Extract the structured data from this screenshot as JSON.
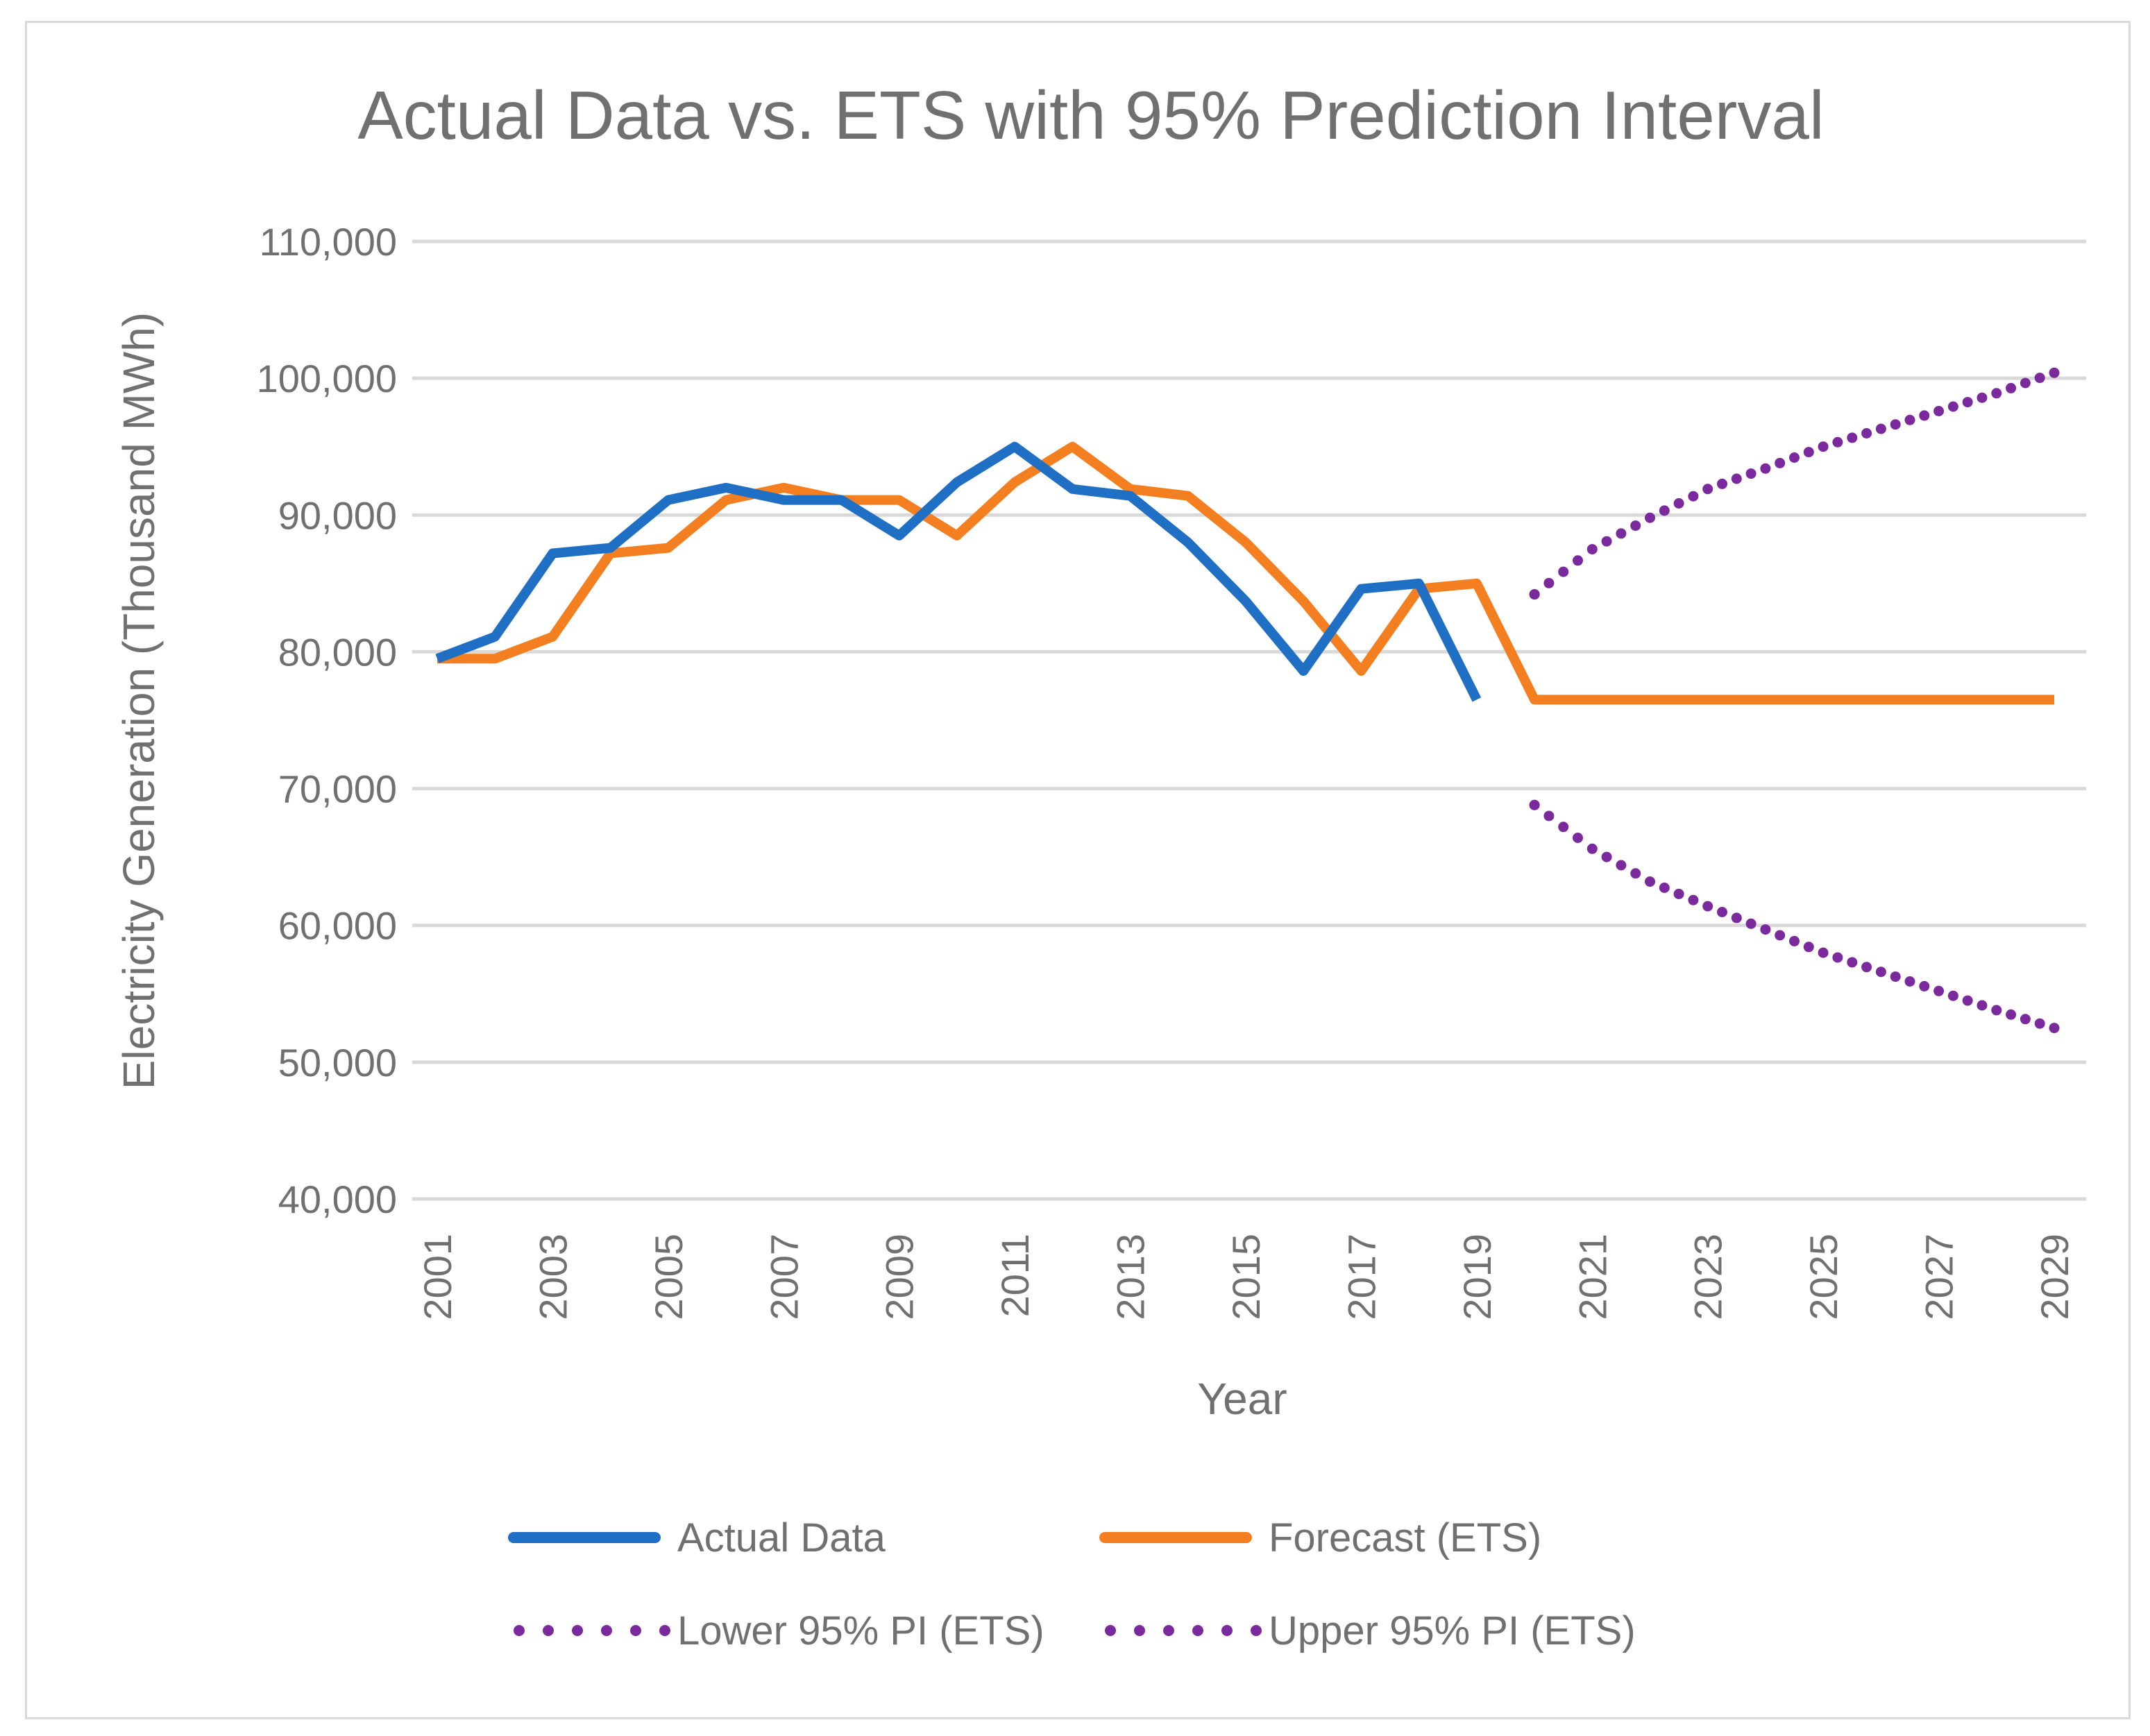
{
  "chart_data": {
    "type": "line",
    "title": "Actual Data vs. ETS with 95% Prediction Interval",
    "xlabel": "Year",
    "ylabel": "Electricity Generation (Thousand MWh)",
    "ylim": [
      40000,
      110000
    ],
    "yticks": [
      40000,
      50000,
      60000,
      70000,
      80000,
      90000,
      100000,
      110000
    ],
    "ytick_labels": [
      "40,000",
      "50,000",
      "60,000",
      "70,000",
      "80,000",
      "90,000",
      "100,000",
      "110,000"
    ],
    "x": [
      2001,
      2002,
      2003,
      2004,
      2005,
      2006,
      2007,
      2008,
      2009,
      2010,
      2011,
      2012,
      2013,
      2014,
      2015,
      2016,
      2017,
      2018,
      2019,
      2020,
      2021,
      2022,
      2023,
      2024,
      2025,
      2026,
      2027,
      2028,
      2029
    ],
    "xtick_labels": [
      "2001",
      "2003",
      "2005",
      "2007",
      "2009",
      "2011",
      "2013",
      "2015",
      "2017",
      "2019",
      "2021",
      "2023",
      "2025",
      "2027",
      "2029"
    ],
    "grid": true,
    "legend_position": "bottom",
    "series": [
      {
        "name": "Actual Data",
        "color": "#1f6fc5",
        "style": "solid",
        "values": [
          79500,
          81100,
          87200,
          87600,
          91100,
          92000,
          91100,
          91100,
          88500,
          92400,
          95000,
          91900,
          91400,
          88000,
          83700,
          78600,
          84600,
          85000,
          76500,
          null,
          null,
          null,
          null,
          null,
          null,
          null,
          null,
          null,
          null
        ]
      },
      {
        "name": "Forecast (ETS)",
        "color": "#f47f20",
        "style": "solid",
        "values": [
          79500,
          79500,
          81100,
          87200,
          87600,
          91100,
          92000,
          91100,
          91100,
          88500,
          92400,
          95000,
          91900,
          91400,
          88000,
          83700,
          78600,
          84600,
          85000,
          76500,
          76500,
          76500,
          76500,
          76500,
          76500,
          76500,
          76500,
          76500,
          76500
        ]
      },
      {
        "name": "Lower 95% PI (ETS)",
        "color": "#7b2a9e",
        "style": "dotted",
        "values": [
          null,
          null,
          null,
          null,
          null,
          null,
          null,
          null,
          null,
          null,
          null,
          null,
          null,
          null,
          null,
          null,
          null,
          null,
          null,
          68800,
          65600,
          63200,
          61400,
          59700,
          58000,
          56600,
          55200,
          53800,
          52500
        ]
      },
      {
        "name": "Upper 95% PI (ETS)",
        "color": "#7b2a9e",
        "style": "dotted",
        "values": [
          null,
          null,
          null,
          null,
          null,
          null,
          null,
          null,
          null,
          null,
          null,
          null,
          null,
          null,
          null,
          null,
          null,
          null,
          null,
          84200,
          87500,
          89800,
          91900,
          93400,
          95000,
          96300,
          97600,
          98900,
          100400
        ]
      }
    ]
  }
}
